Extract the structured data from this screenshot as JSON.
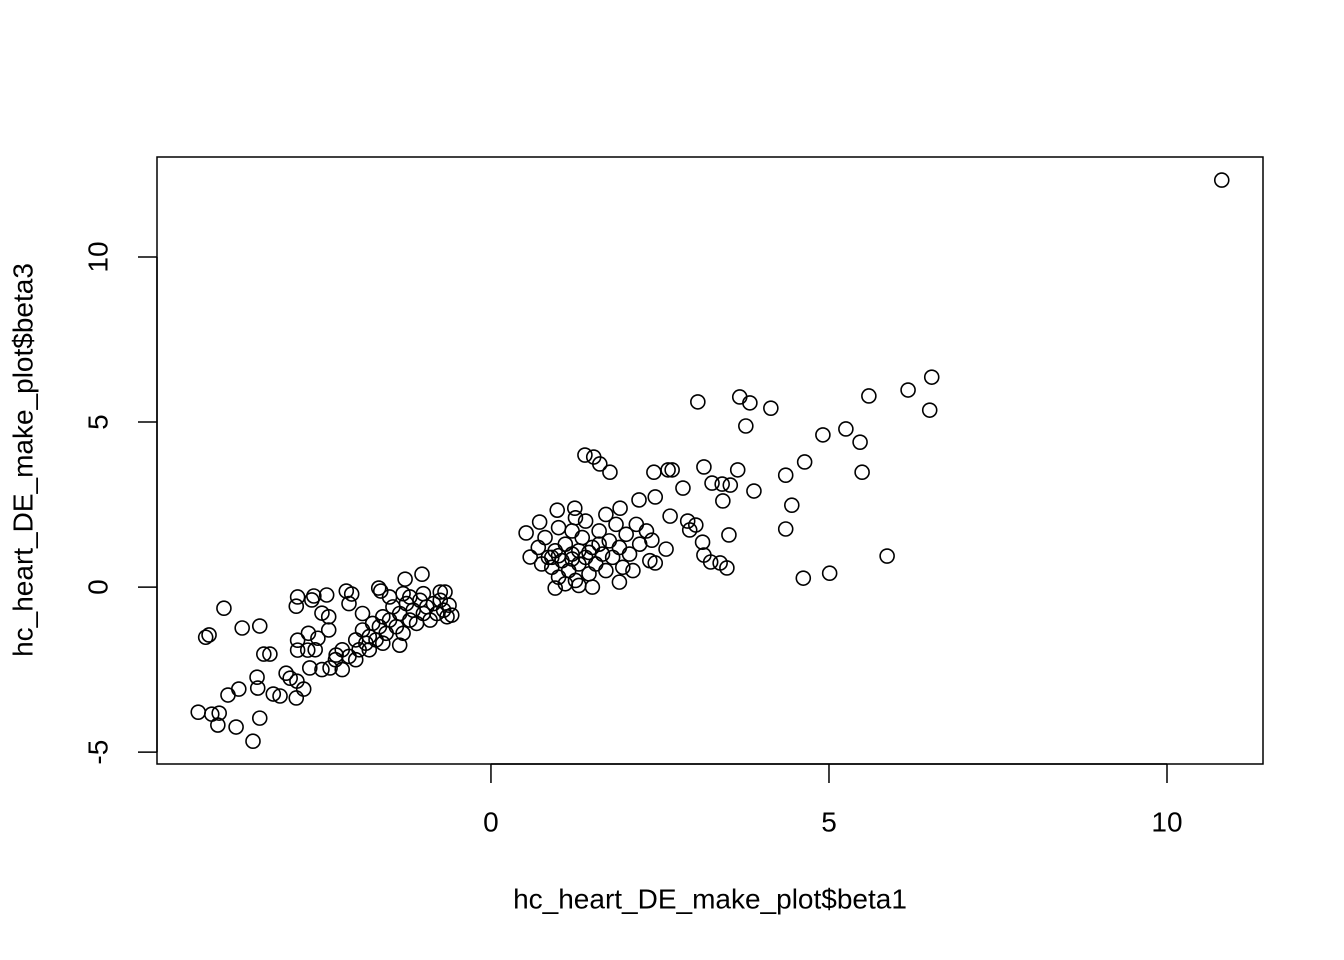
{
  "chart_data": {
    "type": "scatter",
    "x_label": "hc_heart_DE_make_plot$beta1",
    "y_label": "hc_heart_DE_make_plot$beta3",
    "color": "#000000",
    "xlim": [
      -4.94,
      11.42
    ],
    "ylim": [
      -5.36,
      13.03
    ],
    "xticks": [
      0,
      5,
      10
    ],
    "yticks": [
      -5,
      0,
      5,
      10
    ],
    "x": [
      10.81,
      6.52,
      6.49,
      6.17,
      5.59,
      5.25,
      5.46,
      5.49,
      4.91,
      4.64,
      5.86,
      5.01,
      4.62,
      4.36,
      4.45,
      4.36,
      4.14,
      3.68,
      3.83,
      3.77,
      3.89,
      3.65,
      3.54,
      3.06,
      3.15,
      3.27,
      3.42,
      3.43,
      3.52,
      3.49,
      3.39,
      3.25,
      3.15,
      3.13,
      3.03,
      2.91,
      2.94,
      2.84,
      2.68,
      2.62,
      2.41,
      1.76,
      1.61,
      1.39,
      1.52,
      2.43,
      2.38,
      2.43,
      2.59,
      2.65,
      2.19,
      0.52,
      0.58,
      0.72,
      0.95,
      0.98,
      1.24,
      1.91,
      0.85,
      0.9,
      0.95,
      1.0,
      1.05,
      1.1,
      1.15,
      1.2,
      1.25,
      1.3,
      1.35,
      1.4,
      1.45,
      1.5,
      1.55,
      1.6,
      1.65,
      1.7,
      1.75,
      1.8,
      1.85,
      1.9,
      1.95,
      2.0,
      2.05,
      2.1,
      2.15,
      2.2,
      2.3,
      2.35,
      0.7,
      0.75,
      0.8,
      1.0,
      1.2,
      1.4,
      1.1,
      1.3,
      1.5,
      1.9,
      1.7,
      1.25,
      0.9,
      1.0,
      1.2,
      1.3,
      1.45,
      1.6,
      -4.33,
      -4.13,
      -4.02,
      -4.04,
      -4.22,
      -4.17,
      -3.95,
      -3.89,
      -3.77,
      -3.73,
      -3.68,
      -3.52,
      -3.42,
      -3.45,
      -3.42,
      -3.36,
      -3.27,
      -3.46,
      -3.22,
      -3.12,
      -3.03,
      -2.97,
      -2.88,
      -2.87,
      -2.77,
      -2.86,
      -2.88,
      -2.86,
      -2.86,
      -2.71,
      -2.65,
      -2.62,
      -2.68,
      -2.56,
      -2.5,
      -2.43,
      -2.38,
      -2.29,
      -2.14,
      -2.06,
      -1.66,
      -1.63,
      -1.27,
      -1.02,
      -0.68,
      -0.58,
      -1.35,
      -2.3,
      -2.2,
      -2.1,
      -2.0,
      -1.95,
      -1.9,
      -1.85,
      -1.8,
      -1.75,
      -1.7,
      -1.65,
      -1.6,
      -1.55,
      -1.5,
      -1.45,
      -1.4,
      -1.35,
      -1.3,
      -1.25,
      -1.2,
      -1.15,
      -1.1,
      -1.05,
      -1.0,
      -0.95,
      -0.9,
      -0.85,
      -0.8,
      -0.75,
      -0.7,
      -0.65,
      -0.62,
      -2.4,
      -2.5,
      -2.2,
      -2.0,
      -1.8,
      -1.6,
      -2.6,
      -2.7,
      -2.4,
      -2.1,
      -1.9,
      -1.5,
      -1.3,
      -1.2,
      -1.0,
      -0.75
    ],
    "values": [
      12.33,
      6.36,
      5.36,
      5.97,
      5.79,
      4.79,
      4.39,
      3.48,
      4.61,
      3.79,
      0.94,
      0.42,
      0.27,
      3.39,
      2.48,
      1.76,
      5.42,
      5.76,
      5.58,
      4.88,
      2.91,
      3.55,
      3.09,
      5.61,
      3.64,
      3.15,
      3.12,
      2.61,
      1.58,
      0.58,
      0.73,
      0.76,
      0.97,
      1.36,
      1.88,
      2.0,
      1.73,
      3.0,
      3.55,
      3.55,
      3.48,
      3.48,
      3.73,
      4.0,
      3.94,
      2.73,
      1.42,
      0.73,
      1.15,
      2.15,
      2.64,
      1.64,
      0.91,
      1.97,
      -0.03,
      2.33,
      2.39,
      2.39,
      0.9,
      0.6,
      1.1,
      0.3,
      0.8,
      1.3,
      0.5,
      1.0,
      0.2,
      0.7,
      1.5,
      0.9,
      0.4,
      1.2,
      0.7,
      1.7,
      1.0,
      0.5,
      1.4,
      0.9,
      1.9,
      1.2,
      0.6,
      1.6,
      1.0,
      0.5,
      1.9,
      1.3,
      1.7,
      0.8,
      1.2,
      0.7,
      1.5,
      1.8,
      1.7,
      2.0,
      0.1,
      0.05,
      0.0,
      0.15,
      2.2,
      2.1,
      0.9,
      0.95,
      0.85,
      1.1,
      1.05,
      1.3,
      -3.79,
      -3.85,
      -3.82,
      -4.18,
      -1.52,
      -1.45,
      -0.64,
      -3.27,
      -4.24,
      -3.09,
      -1.24,
      -4.67,
      -1.18,
      -3.06,
      -3.97,
      -2.03,
      -2.03,
      -2.73,
      -3.24,
      -3.3,
      -2.61,
      -2.76,
      -3.36,
      -2.85,
      -3.09,
      -0.3,
      -0.58,
      -1.61,
      -1.91,
      -1.91,
      -0.39,
      -0.27,
      -2.45,
      -1.55,
      -0.79,
      -0.24,
      -2.45,
      -2.06,
      -0.12,
      -0.21,
      -0.03,
      -0.12,
      0.24,
      0.39,
      -0.15,
      -0.85,
      -1.76,
      -2.2,
      -1.9,
      -2.1,
      -1.6,
      -1.9,
      -1.3,
      -1.7,
      -1.5,
      -1.1,
      -1.6,
      -1.2,
      -0.9,
      -1.4,
      -1.0,
      -0.6,
      -1.2,
      -0.8,
      -1.4,
      -0.5,
      -1.0,
      -0.7,
      -1.1,
      -0.4,
      -0.8,
      -0.6,
      -1.0,
      -0.5,
      -0.8,
      -0.4,
      -0.7,
      -0.9,
      -0.55,
      -1.3,
      -2.5,
      -2.5,
      -2.2,
      -1.9,
      -1.7,
      -1.9,
      -1.4,
      -0.9,
      -0.5,
      -0.8,
      -0.3,
      -0.2,
      -0.3,
      -0.2,
      -0.15
    ]
  }
}
